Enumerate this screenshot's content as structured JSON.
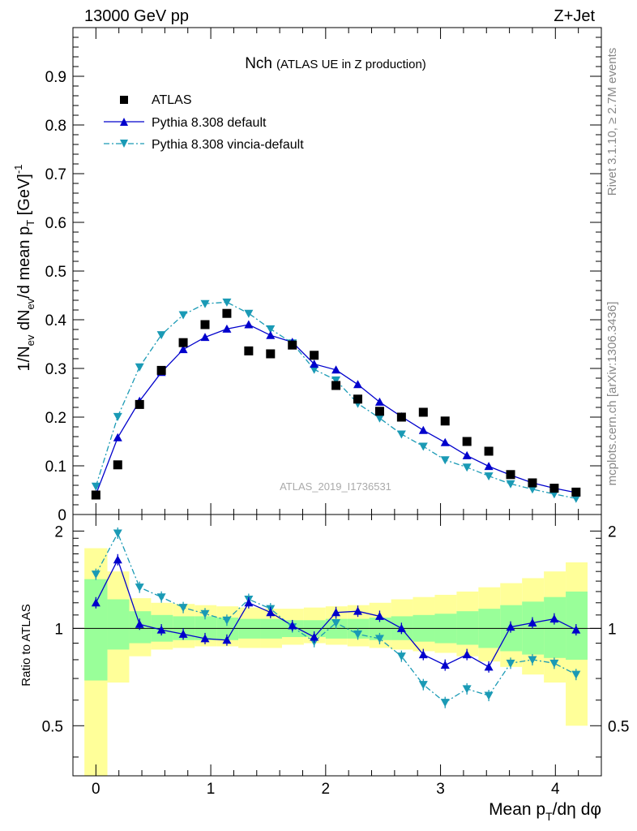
{
  "header": {
    "left_label": "13000 GeV pp",
    "right_label": "Z+Jet"
  },
  "side_labels": {
    "rivet": "Rivet 3.1.10, ≥ 2.7M events",
    "mcplots": "mcplots.cern.ch [arXiv:1306.3436]"
  },
  "chart_data": [
    {
      "type": "scatter",
      "title_main": "Nch",
      "title_sub": "(ATLAS UE in Z production)",
      "watermark": "ATLAS_2019_I1736531",
      "ylabel": "1/N_ev dN_ev/d mean p_T [GeV]^-1",
      "xlim": [
        -0.2,
        4.4
      ],
      "ylim": [
        0,
        1.0
      ],
      "yticks": [
        "0",
        "0.1",
        "0.2",
        "0.3",
        "0.4",
        "0.5",
        "0.6",
        "0.7",
        "0.8",
        "0.9"
      ],
      "legend_position": "top-left",
      "x": [
        0.0,
        0.19,
        0.38,
        0.57,
        0.76,
        0.95,
        1.14,
        1.33,
        1.52,
        1.71,
        1.9,
        2.09,
        2.28,
        2.47,
        2.66,
        2.85,
        3.04,
        3.23,
        3.42,
        3.61,
        3.8,
        3.99,
        4.18
      ],
      "series": [
        {
          "name": "ATLAS",
          "color": "#000000",
          "marker": "square",
          "values": [
            0.04,
            0.102,
            0.226,
            0.296,
            0.353,
            0.39,
            0.413,
            0.336,
            0.33,
            0.348,
            0.327,
            0.265,
            0.237,
            0.212,
            0.2,
            0.21,
            0.192,
            0.15,
            0.13,
            0.082,
            0.065,
            0.054,
            0.046
          ]
        },
        {
          "name": "Pythia 8.308 default",
          "color": "#0000cc",
          "marker": "triangle-up",
          "line": "solid",
          "values": [
            0.041,
            0.158,
            0.233,
            0.292,
            0.339,
            0.364,
            0.381,
            0.39,
            0.368,
            0.354,
            0.309,
            0.297,
            0.267,
            0.231,
            0.201,
            0.173,
            0.148,
            0.121,
            0.099,
            0.081,
            0.065,
            0.054,
            0.045
          ]
        },
        {
          "name": "Pythia 8.308 vincia-default",
          "color": "#1a9ab5",
          "marker": "triangle-down",
          "line": "dashdot",
          "values": [
            0.058,
            0.201,
            0.303,
            0.369,
            0.41,
            0.433,
            0.436,
            0.413,
            0.381,
            0.352,
            0.298,
            0.276,
            0.228,
            0.198,
            0.165,
            0.14,
            0.112,
            0.097,
            0.079,
            0.063,
            0.052,
            0.042,
            0.033
          ]
        }
      ]
    },
    {
      "type": "line",
      "ylabel": "Ratio to ATLAS",
      "xlabel": "Mean p_T/dη dφ",
      "xticks": [
        "0",
        "1",
        "2",
        "3",
        "4"
      ],
      "yticks": [
        "0.5",
        "1",
        "2"
      ],
      "ylim": [
        0.35,
        2.25
      ],
      "bin_edges": [
        -0.1,
        0.1,
        0.29,
        0.48,
        0.67,
        0.86,
        1.05,
        1.24,
        1.43,
        1.62,
        1.81,
        2.0,
        2.19,
        2.38,
        2.57,
        2.76,
        2.95,
        3.14,
        3.33,
        3.52,
        3.71,
        3.9,
        4.09,
        4.28
      ],
      "band_inner": {
        "color": "#99ff99",
        "low": [
          0.69,
          0.86,
          0.9,
          0.91,
          0.92,
          0.92,
          0.92,
          0.93,
          0.93,
          0.94,
          0.94,
          0.93,
          0.93,
          0.92,
          0.92,
          0.91,
          0.9,
          0.89,
          0.87,
          0.85,
          0.83,
          0.81,
          0.8
        ],
        "high": [
          1.42,
          1.23,
          1.13,
          1.1,
          1.09,
          1.09,
          1.08,
          1.07,
          1.07,
          1.06,
          1.06,
          1.07,
          1.07,
          1.08,
          1.09,
          1.1,
          1.11,
          1.13,
          1.15,
          1.18,
          1.21,
          1.25,
          1.3
        ]
      },
      "band_outer": {
        "color": "#ffff99",
        "low": [
          0.35,
          0.68,
          0.82,
          0.86,
          0.87,
          0.88,
          0.88,
          0.87,
          0.87,
          0.89,
          0.9,
          0.89,
          0.88,
          0.87,
          0.86,
          0.85,
          0.84,
          0.82,
          0.79,
          0.76,
          0.72,
          0.68,
          0.5
        ],
        "high": [
          1.77,
          1.5,
          1.24,
          1.2,
          1.19,
          1.18,
          1.17,
          1.16,
          1.15,
          1.15,
          1.16,
          1.17,
          1.18,
          1.2,
          1.23,
          1.25,
          1.27,
          1.3,
          1.34,
          1.38,
          1.43,
          1.5,
          1.6
        ]
      },
      "series": [
        {
          "name": "Pythia 8.308 default",
          "color": "#0000cc",
          "values": [
            1.2,
            1.63,
            1.03,
            0.99,
            0.96,
            0.93,
            0.92,
            1.2,
            1.12,
            1.02,
            0.94,
            1.12,
            1.13,
            1.09,
            1.0,
            0.83,
            0.77,
            0.83,
            0.76,
            1.01,
            1.04,
            1.07,
            0.99
          ]
        },
        {
          "name": "Pythia 8.308 vincia-default",
          "color": "#1a9ab5",
          "values": [
            1.47,
            1.97,
            1.34,
            1.25,
            1.16,
            1.11,
            1.06,
            1.23,
            1.15,
            1.01,
            0.91,
            1.04,
            0.96,
            0.93,
            0.82,
            0.67,
            0.59,
            0.65,
            0.62,
            0.78,
            0.8,
            0.78,
            0.72
          ]
        }
      ]
    }
  ]
}
